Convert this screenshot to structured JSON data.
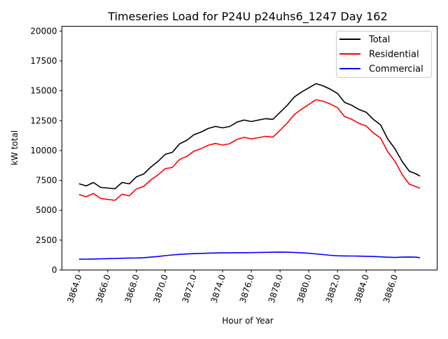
{
  "chart_data": {
    "type": "line",
    "title": "Timeseries Load for P24U p24uhs6_1247  Day 162",
    "xlabel": "Hour of Year",
    "ylabel": "kW total",
    "xlim": [
      3862.81,
      3888.94
    ],
    "ylim": [
      0,
      20400
    ],
    "grid": false,
    "legend_placement": "top-right",
    "xticks": [
      3864,
      3866,
      3868,
      3870,
      3872,
      3874,
      3876,
      3878,
      3880,
      3882,
      3884,
      3886
    ],
    "xtick_labels": [
      "3864.0",
      "3866.0",
      "3868.0",
      "3870.0",
      "3872.0",
      "3874.0",
      "3876.0",
      "3878.0",
      "3880.0",
      "3882.0",
      "3884.0",
      "3886.0"
    ],
    "yticks": [
      0,
      2500,
      5000,
      7500,
      10000,
      12500,
      15000,
      17500,
      20000
    ],
    "ytick_labels": [
      "0",
      "2500",
      "5000",
      "7500",
      "10000",
      "12500",
      "15000",
      "17500",
      "20000"
    ],
    "x": [
      3864,
      3864.5,
      3865,
      3865.5,
      3866,
      3866.5,
      3867,
      3867.5,
      3868,
      3868.5,
      3869,
      3869.5,
      3870,
      3870.5,
      3871,
      3871.5,
      3872,
      3872.5,
      3873,
      3873.5,
      3874,
      3874.5,
      3875,
      3875.5,
      3876,
      3876.5,
      3877,
      3877.5,
      3878,
      3878.5,
      3879,
      3879.5,
      3880,
      3880.5,
      3881,
      3881.5,
      3882,
      3882.5,
      3883,
      3883.5,
      3884,
      3884.5,
      3885,
      3885.5,
      3886,
      3886.5,
      3887,
      3887.5,
      3887.75
    ],
    "series": [
      {
        "name": "Total",
        "color": "#000000",
        "values": [
          7214,
          7040,
          7330,
          6920,
          6860,
          6800,
          7330,
          7210,
          7800,
          8030,
          8620,
          9090,
          9680,
          9850,
          10560,
          10850,
          11320,
          11550,
          11850,
          12020,
          11900,
          12020,
          12380,
          12550,
          12430,
          12550,
          12670,
          12610,
          13200,
          13780,
          14490,
          14900,
          15250,
          15600,
          15420,
          15130,
          14780,
          14020,
          13780,
          13430,
          13200,
          12610,
          12140,
          10970,
          10150,
          9090,
          8270,
          8030,
          7860
        ]
      },
      {
        "name": "Residential",
        "color": "#ff0000",
        "values": [
          6314,
          6130,
          6410,
          5985,
          5910,
          5835,
          6345,
          6210,
          6790,
          7000,
          7540,
          7960,
          8480,
          8590,
          9250,
          9510,
          9950,
          10160,
          10440,
          10595,
          10460,
          10575,
          10930,
          11100,
          10975,
          11080,
          11190,
          11120,
          11700,
          12290,
          13020,
          13460,
          13850,
          14250,
          14130,
          13900,
          13590,
          12840,
          12610,
          12270,
          12050,
          11480,
          11040,
          9900,
          9100,
          8010,
          7180,
          6960,
          6840
        ]
      },
      {
        "name": "Commercial",
        "color": "#0000ff",
        "values": [
          900,
          910,
          920,
          935,
          950,
          965,
          985,
          1000,
          1010,
          1030,
          1080,
          1130,
          1200,
          1260,
          1310,
          1340,
          1370,
          1390,
          1410,
          1425,
          1440,
          1445,
          1450,
          1450,
          1455,
          1470,
          1480,
          1490,
          1500,
          1490,
          1470,
          1440,
          1400,
          1350,
          1290,
          1230,
          1190,
          1180,
          1170,
          1160,
          1150,
          1130,
          1100,
          1070,
          1050,
          1080,
          1090,
          1070,
          1020
        ]
      }
    ]
  }
}
